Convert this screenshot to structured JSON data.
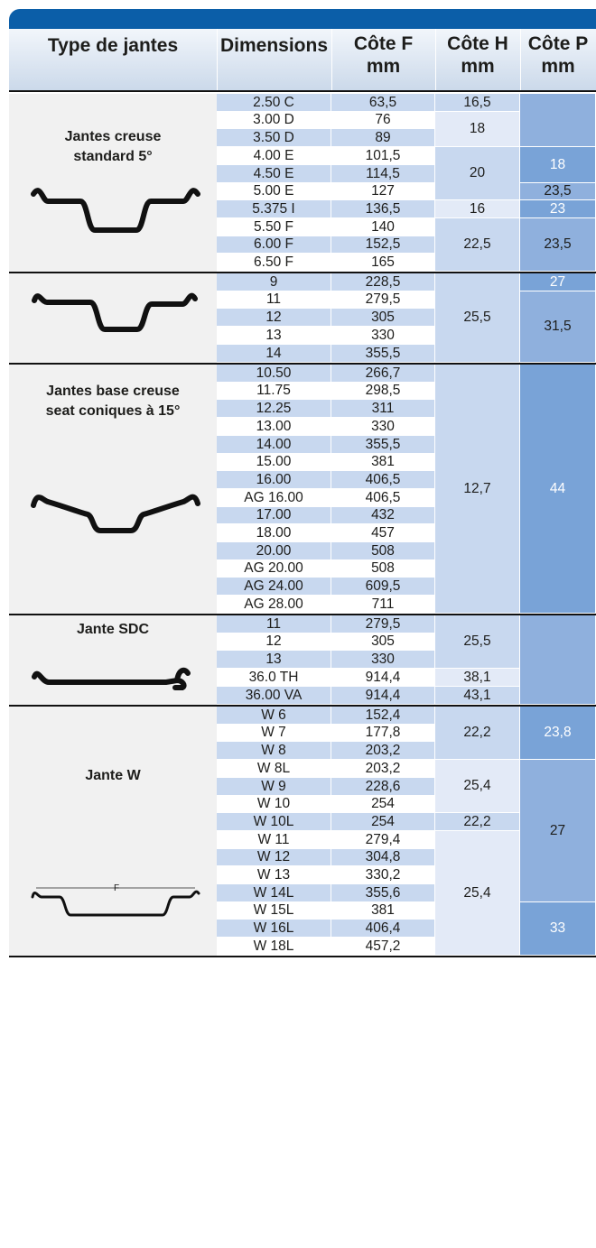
{
  "headers": {
    "type": "Type de jantes",
    "dimensions": "Dimensions",
    "cote_f": [
      "Côte F",
      "mm"
    ],
    "cote_h": [
      "Côte H",
      "mm"
    ],
    "cote_p": [
      "Côte P",
      "mm"
    ]
  },
  "sections": [
    {
      "label_lines": [
        "Jantes creuse",
        "standard 5°"
      ],
      "rows": [
        {
          "dim": "2.50 C",
          "f": "63,5"
        },
        {
          "dim": "3.00 D",
          "f": "76"
        },
        {
          "dim": "3.50 D",
          "f": "89"
        },
        {
          "dim": "4.00 E",
          "f": "101,5"
        },
        {
          "dim": "4.50 E",
          "f": "114,5"
        },
        {
          "dim": "5.00 E",
          "f": "127"
        },
        {
          "dim": "5.375 I",
          "f": "136,5"
        },
        {
          "dim": "5.50 F",
          "f": "140"
        },
        {
          "dim": "6.00 F",
          "f": "152,5"
        },
        {
          "dim": "6.50 F",
          "f": "165"
        }
      ],
      "h_groups": [
        {
          "start": 0,
          "span": 1,
          "value": "16,5"
        },
        {
          "start": 1,
          "span": 2,
          "value": "18"
        },
        {
          "start": 3,
          "span": 3,
          "value": "20"
        },
        {
          "start": 6,
          "span": 1,
          "value": "16"
        },
        {
          "start": 7,
          "span": 3,
          "value": "22,5"
        }
      ],
      "p_groups": [
        {
          "start": 0,
          "span": 3,
          "value": ""
        },
        {
          "start": 3,
          "span": 2,
          "value": "18"
        },
        {
          "start": 5,
          "span": 1,
          "value": "23,5"
        },
        {
          "start": 6,
          "span": 1,
          "value": "23"
        },
        {
          "start": 7,
          "span": 3,
          "value": "23,5"
        }
      ]
    },
    {
      "label_lines": [],
      "rows": [
        {
          "dim": "9",
          "f": "228,5"
        },
        {
          "dim": "11",
          "f": "279,5"
        },
        {
          "dim": "12",
          "f": "305"
        },
        {
          "dim": "13",
          "f": "330"
        },
        {
          "dim": "14",
          "f": "355,5"
        }
      ],
      "h_groups": [
        {
          "start": 0,
          "span": 5,
          "value": "25,5"
        }
      ],
      "p_groups": [
        {
          "start": 0,
          "span": 1,
          "value": "27"
        },
        {
          "start": 1,
          "span": 4,
          "value": "31,5"
        }
      ]
    },
    {
      "label_lines": [
        "Jantes base creuse",
        "seat coniques à 15°"
      ],
      "rows": [
        {
          "dim": "10.50",
          "f": "266,7"
        },
        {
          "dim": "11.75",
          "f": "298,5"
        },
        {
          "dim": "12.25",
          "f": "311"
        },
        {
          "dim": "13.00",
          "f": "330"
        },
        {
          "dim": "14.00",
          "f": "355,5"
        },
        {
          "dim": "15.00",
          "f": "381"
        },
        {
          "dim": "16.00",
          "f": "406,5"
        },
        {
          "dim": "AG 16.00",
          "f": "406,5"
        },
        {
          "dim": "17.00",
          "f": "432"
        },
        {
          "dim": "18.00",
          "f": "457"
        },
        {
          "dim": "20.00",
          "f": "508"
        },
        {
          "dim": "AG 20.00",
          "f": "508"
        },
        {
          "dim": "AG 24.00",
          "f": "609,5"
        },
        {
          "dim": "AG 28.00",
          "f": "711"
        }
      ],
      "h_groups": [
        {
          "start": 0,
          "span": 14,
          "value": "12,7"
        }
      ],
      "p_groups": [
        {
          "start": 0,
          "span": 14,
          "value": "44"
        }
      ]
    },
    {
      "label_lines": [
        "Jante SDC"
      ],
      "rows": [
        {
          "dim": "11",
          "f": "279,5"
        },
        {
          "dim": "12",
          "f": "305"
        },
        {
          "dim": "13",
          "f": "330"
        },
        {
          "dim": "36.0 TH",
          "f": "914,4"
        },
        {
          "dim": "36.00 VA",
          "f": "914,4"
        }
      ],
      "h_groups": [
        {
          "start": 0,
          "span": 3,
          "value": "25,5"
        },
        {
          "start": 3,
          "span": 1,
          "value": "38,1"
        },
        {
          "start": 4,
          "span": 1,
          "value": "43,1"
        }
      ],
      "p_groups": [
        {
          "start": 0,
          "span": 5,
          "value": ""
        }
      ]
    },
    {
      "label_lines": [
        "Jante W"
      ],
      "rows": [
        {
          "dim": "W 6",
          "f": "152,4"
        },
        {
          "dim": "W 7",
          "f": "177,8"
        },
        {
          "dim": "W 8",
          "f": "203,2"
        },
        {
          "dim": "W 8L",
          "f": "203,2"
        },
        {
          "dim": "W 9",
          "f": "228,6"
        },
        {
          "dim": "W 10",
          "f": "254"
        },
        {
          "dim": "W 10L",
          "f": "254"
        },
        {
          "dim": "W 11",
          "f": "279,4"
        },
        {
          "dim": "W 12",
          "f": "304,8"
        },
        {
          "dim": "W 13",
          "f": "330,2"
        },
        {
          "dim": "W 14L",
          "f": "355,6"
        },
        {
          "dim": "W 15L",
          "f": "381"
        },
        {
          "dim": "W 16L",
          "f": "406,4"
        },
        {
          "dim": "W 18L",
          "f": "457,2"
        }
      ],
      "h_groups": [
        {
          "start": 0,
          "span": 3,
          "value": "22,2"
        },
        {
          "start": 3,
          "span": 3,
          "value": "25,4"
        },
        {
          "start": 6,
          "span": 1,
          "value": "22,2"
        },
        {
          "start": 7,
          "span": 7,
          "value": "25,4"
        }
      ],
      "p_groups": [
        {
          "start": 0,
          "span": 3,
          "value": "23,8"
        },
        {
          "start": 3,
          "span": 8,
          "value": "27"
        },
        {
          "start": 11,
          "span": 3,
          "value": "33"
        }
      ],
      "diagram_label": "F"
    }
  ],
  "colors": {
    "header_bar": "#0b5ea8",
    "row_blue": "#c8d8ef",
    "row_white": "#ffffff",
    "h_col": "#e3eaf7",
    "p_col_dark": "#79a3d7"
  }
}
